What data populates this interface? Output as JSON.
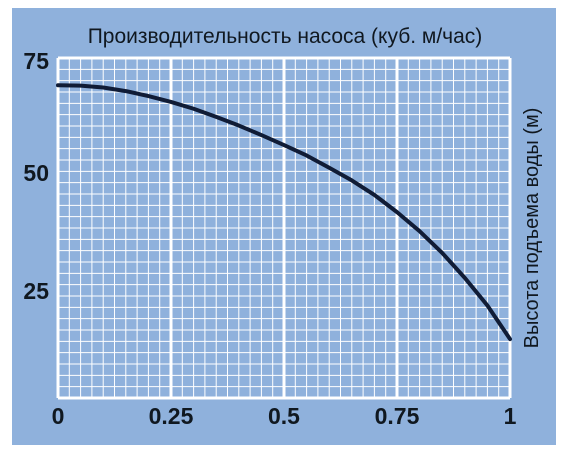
{
  "chart_data": {
    "type": "line",
    "title": "Производительность насоса (куб. м/час)",
    "xlabel": "",
    "ylabel": "Высота подъема воды (м)",
    "xlim": [
      0,
      1
    ],
    "ylim": [
      0,
      75
    ],
    "x_ticks": [
      "0",
      "0.25",
      "0.5",
      "0.75",
      "1"
    ],
    "x_tick_values": [
      0,
      0.25,
      0.5,
      0.75,
      1
    ],
    "y_ticks": [
      "25",
      "50",
      "75"
    ],
    "y_tick_values": [
      25,
      50,
      75
    ],
    "grid": true,
    "colors": {
      "background": "#8fb1dc",
      "minor_grid": "#ffffff",
      "major_grid": "#ffffff",
      "line": "#101c36",
      "page": "#ffffff"
    },
    "series": [
      {
        "x": [
          0,
          0.05,
          0.1,
          0.15,
          0.2,
          0.25,
          0.3,
          0.35,
          0.4,
          0.45,
          0.5,
          0.55,
          0.6,
          0.65,
          0.7,
          0.75,
          0.8,
          0.85,
          0.9,
          0.95,
          1
        ],
        "y": [
          69,
          68.9,
          68.5,
          67.7,
          66.6,
          65.3,
          63.8,
          62,
          60.1,
          58,
          55.8,
          53.5,
          50.8,
          48,
          44.8,
          41,
          36.8,
          32,
          26.5,
          20.4,
          13
        ]
      }
    ]
  }
}
